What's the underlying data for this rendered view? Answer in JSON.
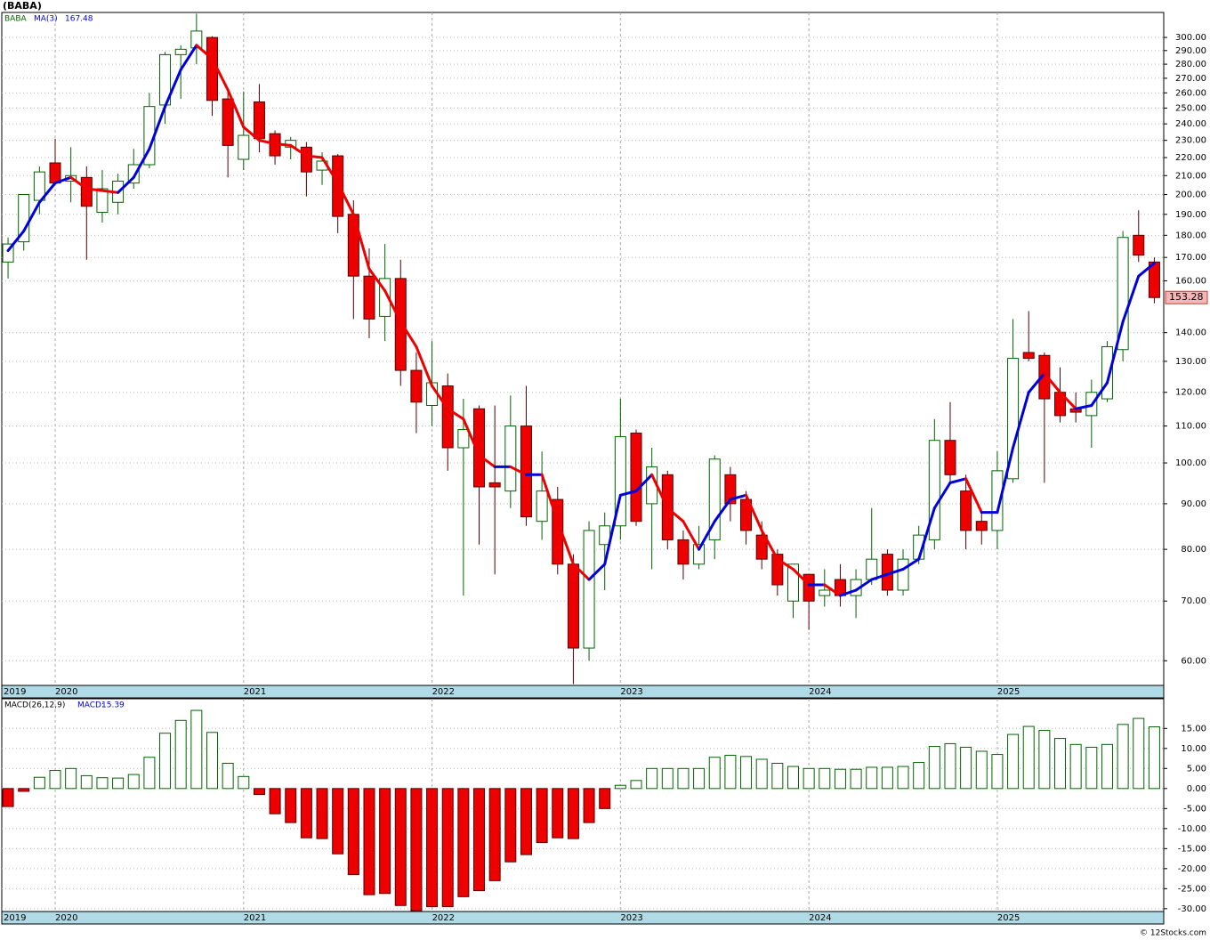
{
  "chart_data": [
    {
      "type": "candlestick",
      "title": "(BABA)",
      "symbol": "BABA",
      "ylog": true,
      "grid": true,
      "up_color": "#006400",
      "down_color": "#ee0000",
      "symbol_color": "#006400",
      "categories": [
        "2019",
        null,
        null,
        "2020",
        null,
        null,
        null,
        null,
        null,
        null,
        null,
        null,
        null,
        null,
        null,
        "2021",
        null,
        null,
        null,
        null,
        null,
        null,
        null,
        null,
        null,
        null,
        null,
        "2022",
        null,
        null,
        null,
        null,
        null,
        null,
        null,
        null,
        null,
        null,
        null,
        "2023",
        null,
        null,
        null,
        null,
        null,
        null,
        null,
        null,
        null,
        null,
        null,
        "2024",
        null,
        null,
        null,
        null,
        null,
        null,
        null,
        null,
        null,
        null,
        null,
        "2025",
        null,
        null,
        null,
        null,
        null,
        null,
        null,
        null,
        null,
        null
      ],
      "open": [
        168,
        177,
        197,
        217,
        207,
        209,
        191,
        196,
        206,
        216,
        252,
        287,
        292,
        300,
        256,
        219,
        254,
        234,
        226,
        226,
        213,
        221,
        190,
        162,
        146,
        161,
        127,
        116,
        122,
        104,
        115,
        95,
        93,
        110,
        86,
        91,
        77,
        62,
        81,
        85,
        108,
        90,
        97,
        82,
        77,
        82,
        97,
        91,
        83,
        79,
        70,
        75,
        71,
        74,
        71,
        74,
        79,
        72,
        78,
        82,
        106,
        93,
        86,
        84,
        96,
        133,
        132,
        120,
        115,
        113,
        118,
        134,
        180,
        168
      ],
      "high": [
        179,
        200,
        215,
        231,
        226,
        215,
        213,
        211,
        225,
        260,
        289,
        294,
        319,
        301,
        262,
        261,
        266,
        236,
        232,
        229,
        223,
        222,
        197,
        174,
        176,
        169,
        133,
        137,
        126,
        118,
        116,
        116,
        119,
        122,
        103,
        94,
        79,
        86,
        88,
        118,
        109,
        104,
        98,
        84,
        85,
        102,
        99,
        93,
        86,
        80,
        77,
        75,
        76,
        77,
        76,
        89,
        80,
        80,
        85,
        112,
        117,
        97,
        88,
        103,
        145,
        148,
        133,
        128,
        120,
        124,
        137,
        182,
        192,
        170
      ],
      "low": [
        161,
        173,
        190,
        205,
        196,
        169,
        186,
        190,
        203,
        214,
        240,
        256,
        280,
        245,
        209,
        213,
        223,
        216,
        219,
        199,
        205,
        181,
        145,
        138,
        137,
        122,
        108,
        110,
        98,
        71,
        81,
        75,
        89,
        85,
        82,
        75,
        56.5,
        60,
        72,
        82,
        85,
        76,
        80,
        74,
        76,
        78,
        86,
        81,
        76,
        71,
        67,
        65,
        69,
        69,
        67,
        73,
        71,
        71,
        77,
        80,
        95,
        80,
        81,
        80,
        95,
        130,
        95,
        111,
        111,
        104,
        117,
        130,
        168,
        151
      ],
      "close": [
        176,
        200,
        212,
        206,
        210,
        194,
        203,
        207,
        216,
        251,
        287,
        291,
        305,
        255,
        227,
        233,
        231,
        221,
        230,
        212,
        218,
        189,
        162,
        145,
        161,
        127,
        117,
        123,
        104,
        109,
        94,
        94,
        110,
        87,
        93,
        77,
        62,
        84,
        85,
        107,
        86,
        99,
        82,
        77,
        81,
        101,
        90,
        84,
        78,
        73,
        77,
        70,
        72,
        71,
        74,
        78,
        72,
        78,
        83,
        106,
        97,
        84,
        84,
        98,
        131,
        131,
        118,
        113,
        114,
        120,
        135,
        179,
        171,
        153.28
      ],
      "series": [
        {
          "name": "MA(3)",
          "color": "#0000dd",
          "down_color": "#ee0000",
          "values": [
            173,
            182,
            196,
            206,
            209,
            203,
            202,
            201,
            209,
            225,
            251,
            276,
            294,
            284,
            262,
            238,
            230,
            228,
            227,
            221,
            220,
            206,
            190,
            165,
            156,
            144,
            135,
            122,
            115,
            112,
            102,
            99,
            99,
            97,
            97,
            86,
            77,
            74,
            77,
            92,
            93,
            97,
            89,
            86,
            80,
            86,
            91,
            92,
            84,
            78,
            76,
            73,
            73,
            71,
            72,
            74,
            75,
            76,
            78,
            89,
            95,
            96,
            88,
            88,
            104,
            120,
            126,
            120,
            115,
            116,
            123,
            144,
            162,
            167.48
          ]
        }
      ],
      "ylim": [
        56.3,
        320
      ],
      "yticks": [
        {
          "value": 60,
          "label": "60.00"
        },
        {
          "value": 70,
          "label": "70.00"
        },
        {
          "value": 80,
          "label": "80.00"
        },
        {
          "value": 90,
          "label": "90.00"
        },
        {
          "value": 100,
          "label": "100.00"
        },
        {
          "value": 110,
          "label": "110.00"
        },
        {
          "value": 120,
          "label": "120.00"
        },
        {
          "value": 130,
          "label": "130.00"
        },
        {
          "value": 140,
          "label": "140.00"
        },
        {
          "value": 160,
          "label": "160.00"
        },
        {
          "value": 170,
          "label": "170.00"
        },
        {
          "value": 180,
          "label": "180.00"
        },
        {
          "value": 190,
          "label": "190.00"
        },
        {
          "value": 200,
          "label": "200.00"
        },
        {
          "value": 210,
          "label": "210.00"
        },
        {
          "value": 220,
          "label": "220.00"
        },
        {
          "value": 230,
          "label": "230.00"
        },
        {
          "value": 240,
          "label": "240.00"
        },
        {
          "value": 250,
          "label": "250.00"
        },
        {
          "value": 260,
          "label": "260.00"
        },
        {
          "value": 270,
          "label": "270.00"
        },
        {
          "value": 280,
          "label": "280.00"
        },
        {
          "value": 290,
          "label": "290.00"
        },
        {
          "value": 300,
          "label": "300.00"
        }
      ]
    },
    {
      "type": "bar",
      "indicator": "MACD(26,12,9)",
      "value_prefix": "MACD:",
      "grid": true,
      "up_color": "#006400",
      "down_color": "#ee0000",
      "color": "#0000dd",
      "categories": [
        "2019",
        null,
        null,
        "2020",
        null,
        null,
        null,
        null,
        null,
        null,
        null,
        null,
        null,
        null,
        null,
        "2021",
        null,
        null,
        null,
        null,
        null,
        null,
        null,
        null,
        null,
        null,
        null,
        "2022",
        null,
        null,
        null,
        null,
        null,
        null,
        null,
        null,
        null,
        null,
        null,
        "2023",
        null,
        null,
        null,
        null,
        null,
        null,
        null,
        null,
        null,
        null,
        null,
        "2024",
        null,
        null,
        null,
        null,
        null,
        null,
        null,
        null,
        null,
        null,
        null,
        "2025",
        null,
        null,
        null,
        null,
        null,
        null,
        null,
        null,
        null,
        null
      ],
      "values": [
        -4.5,
        -0.7,
        2.8,
        4.5,
        5,
        3.2,
        2.7,
        2.6,
        3.5,
        7.8,
        13.8,
        17,
        19.5,
        14,
        6.3,
        3,
        -1.5,
        -6.3,
        -8.5,
        -12.3,
        -12.5,
        -16.3,
        -21.5,
        -26.5,
        -26.2,
        -29.2,
        -30.5,
        -29.5,
        -29.5,
        -27,
        -25.5,
        -23,
        -18.3,
        -16.5,
        -13.5,
        -12.3,
        -12.5,
        -8.5,
        -5,
        0.8,
        2,
        5,
        5,
        5,
        5,
        7.8,
        8.3,
        8,
        7.3,
        6.3,
        5.5,
        5,
        5,
        4.8,
        4.8,
        5.3,
        5.3,
        5.5,
        6.5,
        10.5,
        11.2,
        10.3,
        9.3,
        8.5,
        13.5,
        15.5,
        14.5,
        12.5,
        11,
        10.3,
        11,
        16,
        17.5,
        15.39
      ],
      "ylim": [
        -30.7,
        22.4
      ],
      "yticks": [
        {
          "value": 15,
          "label": "15.00"
        },
        {
          "value": 10,
          "label": "10.00"
        },
        {
          "value": 5,
          "label": "5.00"
        },
        {
          "value": 0,
          "label": "0.00"
        },
        {
          "value": -5,
          "label": "-5.00"
        },
        {
          "value": -10,
          "label": "-10.00"
        },
        {
          "value": -15,
          "label": "-15.00"
        },
        {
          "value": -20,
          "label": "-20.00"
        },
        {
          "value": -25,
          "label": "-25.00"
        },
        {
          "value": -30,
          "label": "-30.00"
        }
      ]
    }
  ],
  "footer": "© 12Stocks.com"
}
